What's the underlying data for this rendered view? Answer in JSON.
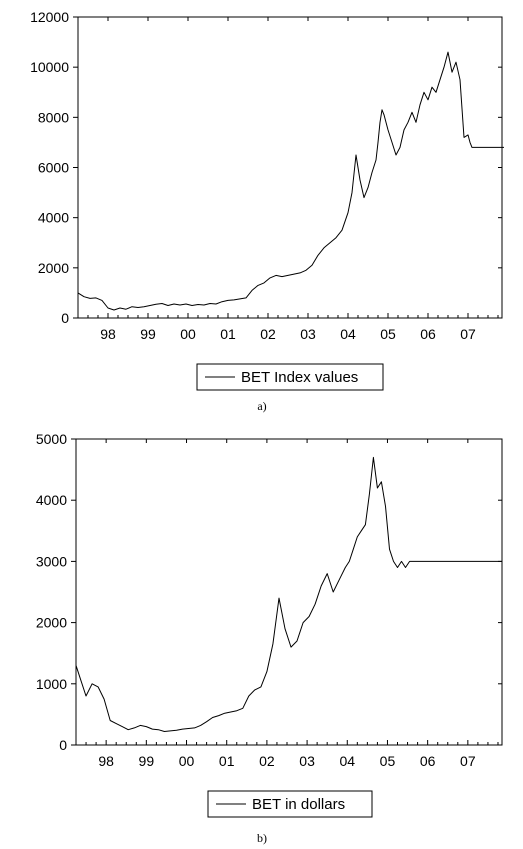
{
  "chart_data": [
    {
      "type": "line",
      "caption": "a)",
      "series": [
        {
          "name": "BET Index values",
          "color": "#000000",
          "x": [
            1997.25,
            1997.4,
            1997.55,
            1997.7,
            1997.85,
            1998.0,
            1998.15,
            1998.3,
            1998.45,
            1998.6,
            1998.75,
            1998.9,
            1999.05,
            1999.2,
            1999.35,
            1999.5,
            1999.65,
            1999.8,
            1999.95,
            2000.1,
            2000.25,
            2000.4,
            2000.55,
            2000.7,
            2000.85,
            2001.0,
            2001.15,
            2001.3,
            2001.45,
            2001.6,
            2001.75,
            2001.9,
            2002.05,
            2002.2,
            2002.35,
            2002.5,
            2002.65,
            2002.8,
            2002.95,
            2003.1,
            2003.25,
            2003.4,
            2003.55,
            2003.7,
            2003.85,
            2004.0,
            2004.1,
            2004.2,
            2004.3,
            2004.4,
            2004.5,
            2004.6,
            2004.7,
            2004.75,
            2004.8,
            2004.85,
            2004.9,
            2005.0,
            2005.1,
            2005.2,
            2005.3,
            2005.4,
            2005.5,
            2005.6,
            2005.7,
            2005.8,
            2005.9,
            2006.0,
            2006.1,
            2006.2,
            2006.3,
            2006.4,
            2006.5,
            2006.6,
            2006.7,
            2006.8,
            2006.9,
            2007.0,
            2007.05,
            2007.1,
            2007.15,
            2007.2,
            2007.3,
            2007.4,
            2007.5,
            2007.6,
            2007.7,
            2007.8,
            2007.9
          ],
          "y": [
            1000,
            850,
            780,
            800,
            700,
            400,
            320,
            400,
            350,
            450,
            420,
            450,
            500,
            550,
            580,
            500,
            560,
            520,
            560,
            500,
            540,
            520,
            580,
            560,
            650,
            700,
            720,
            760,
            800,
            1100,
            1300,
            1400,
            1600,
            1700,
            1650,
            1700,
            1750,
            1800,
            1900,
            2100,
            2500,
            2800,
            3000,
            3200,
            3500,
            4200,
            5000,
            6500,
            5500,
            4800,
            5200,
            5800,
            6300,
            7000,
            7800,
            8300,
            8100,
            7500,
            7000,
            6500,
            6800,
            7500,
            7800,
            8200,
            7800,
            8500,
            9000,
            8700,
            9200,
            9000,
            9500,
            10000,
            10600,
            9800,
            10200,
            9500,
            7200,
            7300,
            7000,
            6800,
            6800,
            6800,
            6800,
            6800,
            6800,
            6800,
            6800,
            6800,
            6800
          ],
          "note": ""
        }
      ],
      "x_ticks": [
        "98",
        "99",
        "00",
        "01",
        "02",
        "03",
        "04",
        "05",
        "06",
        "07"
      ],
      "y_ticks": [
        "0",
        "2000",
        "4000",
        "6000",
        "8000",
        "10000",
        "12000"
      ],
      "ylim": [
        0,
        12000
      ],
      "xlim": [
        1997.25,
        2007.85
      ],
      "legend": "bottom-center",
      "grid": false
    },
    {
      "type": "line",
      "caption": "b)",
      "series": [
        {
          "name": "BET in dollars",
          "color": "#000000",
          "x": [
            1997.25,
            1997.35,
            1997.5,
            1997.65,
            1997.8,
            1997.95,
            1998.1,
            1998.25,
            1998.4,
            1998.55,
            1998.7,
            1998.85,
            1999.0,
            1999.15,
            1999.3,
            1999.45,
            1999.6,
            1999.75,
            1999.9,
            2000.05,
            2000.2,
            2000.35,
            2000.5,
            2000.65,
            2000.8,
            2000.95,
            2001.1,
            2001.25,
            2001.4,
            2001.55,
            2001.7,
            2001.85,
            2002.0,
            2002.15,
            2002.3,
            2002.45,
            2002.6,
            2002.75,
            2002.9,
            2003.05,
            2003.2,
            2003.35,
            2003.5,
            2003.65,
            2003.8,
            2003.95,
            2004.05,
            2004.15,
            2004.25,
            2004.35,
            2004.45,
            2004.55,
            2004.65,
            2004.75,
            2004.85,
            2004.95,
            2005.05,
            2005.15,
            2005.25,
            2005.35,
            2005.45,
            2005.55,
            2005.65,
            2005.75,
            2005.85,
            2005.95,
            2006.05,
            2006.15,
            2006.25,
            2006.35,
            2006.45,
            2006.55,
            2006.65,
            2006.75,
            2006.85,
            2006.95,
            2007.05,
            2007.15,
            2007.25,
            2007.35,
            2007.45,
            2007.55,
            2007.65,
            2007.75,
            2007.85
          ],
          "y": [
            1300,
            1100,
            800,
            1000,
            950,
            750,
            400,
            350,
            300,
            250,
            280,
            320,
            300,
            260,
            250,
            220,
            230,
            240,
            260,
            270,
            280,
            320,
            380,
            450,
            480,
            520,
            540,
            560,
            600,
            800,
            900,
            950,
            1200,
            1650,
            2400,
            1900,
            1600,
            1700,
            2000,
            2100,
            2300,
            2600,
            2800,
            2500,
            2700,
            2900,
            3000,
            3200,
            3400,
            3500,
            3600,
            4100,
            4700,
            4200,
            4300,
            3900,
            3200,
            3000,
            2900,
            3000,
            2900,
            3000,
            3000,
            3000,
            3000,
            3000,
            3000,
            3000,
            3000,
            3000,
            3000,
            3000,
            3000,
            3000,
            3000,
            3000,
            3000,
            3000,
            3000,
            3000,
            3000,
            3000,
            3000,
            3000,
            3000
          ],
          "note": ""
        }
      ],
      "x_ticks": [
        "98",
        "99",
        "00",
        "01",
        "02",
        "03",
        "04",
        "05",
        "06",
        "07"
      ],
      "y_ticks": [
        "0",
        "1000",
        "2000",
        "3000",
        "4000",
        "5000"
      ],
      "ylim": [
        0,
        5000
      ],
      "xlim": [
        1997.25,
        2007.85
      ],
      "legend": "bottom-center",
      "grid": false
    }
  ]
}
